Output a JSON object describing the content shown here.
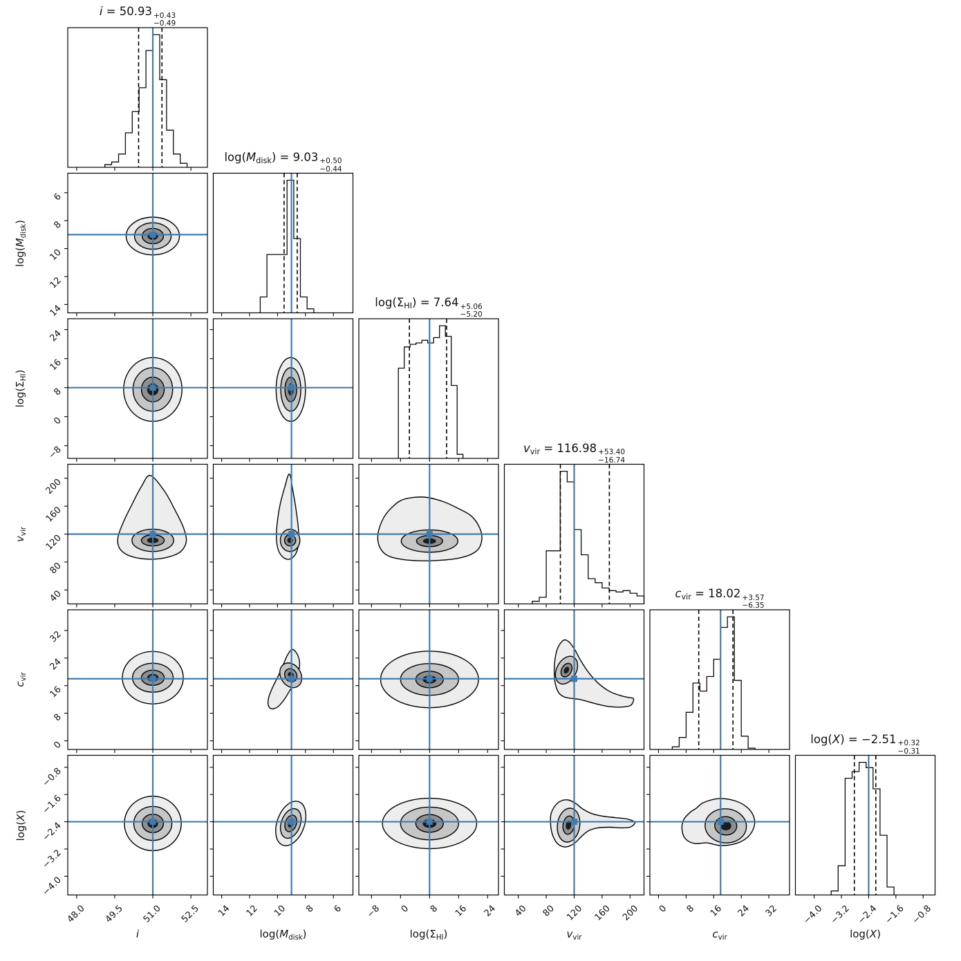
{
  "figure": {
    "background": "#ffffff",
    "accent_blue": "#3E7CB1",
    "contour_stroke": "#000000",
    "hist_stroke": "#0a0a0a",
    "quantile_dash_color": "#000000",
    "contour_fills": [
      "#ededed",
      "#c6c6c6",
      "#8f8f8f",
      "#1b1b1b"
    ]
  },
  "chart_data": {
    "type": "corner_plot",
    "description": "6-parameter MCMC posterior corner plot: diagonal 1D marginal histograms with median/quantile annotations, lower triangle 2D joint grayscale density contours, blue truth cross-hairs.",
    "parameters": [
      {
        "id": "i",
        "label_segments": [
          {
            "t": "i",
            "i": true
          }
        ],
        "title": {
          "median": "50.93",
          "plus": "+0.43",
          "minus": "−0.49"
        },
        "range": [
          47.65,
          53.15
        ],
        "ticks": [
          48.0,
          49.5,
          51.0,
          52.5
        ],
        "tick_labels": [
          "48.0",
          "49.5",
          "51.0",
          "52.5"
        ],
        "truth": 51.0,
        "quantiles": [
          50.44,
          51.36
        ],
        "hist": {
          "start": 49.11,
          "bin_width": 0.27,
          "heights": [
            0.02,
            0.04,
            0.1,
            0.26,
            0.42,
            0.6,
            0.88,
            1.0,
            0.66,
            0.28,
            0.1,
            0.03
          ]
        }
      },
      {
        "id": "logMdisk",
        "label_segments": [
          {
            "t": "log("
          },
          {
            "t": "M",
            "i": true
          },
          {
            "t": "disk",
            "sub": true
          },
          {
            "t": ")"
          }
        ],
        "title": {
          "median": "9.03",
          "plus": "+0.50",
          "minus": "−0.44"
        },
        "range": [
          14.6,
          4.6
        ],
        "ticks": [
          14,
          12,
          10,
          8,
          6
        ],
        "tick_labels": [
          "14",
          "12",
          "10",
          "8",
          "6"
        ],
        "truth": 9.0,
        "quantiles": [
          9.53,
          8.59
        ],
        "hist": {
          "start": 7.4,
          "bin_width": 0.48,
          "heights": [
            0.03,
            0.12,
            0.56,
            1.0,
            0.44,
            0.44,
            0.44,
            0.12
          ]
        }
      },
      {
        "id": "logSigmaHI",
        "label_segments": [
          {
            "t": "log("
          },
          {
            "t": "Σ"
          },
          {
            "t": "HI",
            "sub": true
          },
          {
            "t": ")"
          }
        ],
        "title": {
          "median": "7.64",
          "plus": "+5.06",
          "minus": "−5.20"
        },
        "range": [
          -11.5,
          27.0
        ],
        "ticks": [
          -8,
          0,
          8,
          16,
          24
        ],
        "tick_labels": [
          "−8",
          "0",
          "8",
          "16",
          "24"
        ],
        "truth": 8.0,
        "quantiles": [
          2.44,
          12.7
        ],
        "hist": {
          "start": -0.6,
          "bin_width": 1.62,
          "heights": [
            0.68,
            0.84,
            0.86,
            0.87,
            0.89,
            0.87,
            0.91,
            1.0,
            0.92,
            0.55,
            0.03
          ]
        }
      },
      {
        "id": "vvir",
        "label_segments": [
          {
            "t": "v",
            "i": true
          },
          {
            "t": "vir",
            "sub": true
          }
        ],
        "title": {
          "median": "116.98",
          "plus": "+53.40",
          "minus": "−16.74"
        },
        "range": [
          20,
          220
        ],
        "ticks": [
          40,
          80,
          120,
          160,
          200
        ],
        "tick_labels": [
          "40",
          "80",
          "120",
          "160",
          "200"
        ],
        "truth": 120.0,
        "quantiles": [
          100.24,
          170.38
        ],
        "hist": {
          "start": 60,
          "bin_width": 10,
          "heights": [
            0.02,
            0.05,
            0.4,
            0.4,
            1.0,
            0.92,
            0.56,
            0.37,
            0.19,
            0.16,
            0.12,
            0.1,
            0.09,
            0.1,
            0.08,
            0.06
          ]
        }
      },
      {
        "id": "cvir",
        "label_segments": [
          {
            "t": "c",
            "i": true
          },
          {
            "t": "vir",
            "sub": true
          }
        ],
        "title": {
          "median": "18.02",
          "plus": "+3.57",
          "minus": "−6.35"
        },
        "range": [
          -2.5,
          38
        ],
        "ticks": [
          0,
          8,
          16,
          24,
          32
        ],
        "tick_labels": [
          "0",
          "8",
          "16",
          "24",
          "32"
        ],
        "truth": 18.0,
        "quantiles": [
          11.67,
          21.59
        ],
        "hist": {
          "start": 4,
          "bin_width": 2,
          "heights": [
            0.02,
            0.09,
            0.28,
            0.5,
            0.44,
            0.55,
            0.68,
            0.92,
            1.0,
            0.52,
            0.1,
            0.01
          ]
        }
      },
      {
        "id": "logX",
        "label_segments": [
          {
            "t": "log("
          },
          {
            "t": "X",
            "i": true
          },
          {
            "t": ")"
          }
        ],
        "title": {
          "median": "−2.51",
          "plus": "+0.32",
          "minus": "−0.31"
        },
        "range": [
          -4.55,
          -0.45
        ],
        "ticks": [
          -4.0,
          -3.2,
          -2.4,
          -1.6,
          -0.8
        ],
        "tick_labels": [
          "−4.0",
          "−3.2",
          "−2.4",
          "−1.6",
          "−0.8"
        ],
        "truth": -2.4,
        "quantiles": [
          -2.82,
          -2.19
        ],
        "hist": {
          "start": -3.5,
          "bin_width": 0.205,
          "heights": [
            0.03,
            0.22,
            0.88,
            0.93,
            1.0,
            0.96,
            0.8,
            0.45,
            0.06
          ]
        }
      }
    ],
    "panels_2d": [
      {
        "x": 0,
        "y": 1,
        "core": [
          51.0,
          9.1
        ],
        "rot": 0,
        "levels": [
          [
            0.42,
            0.55
          ],
          [
            0.72,
            0.95
          ],
          [
            1.05,
            1.35
          ]
        ]
      },
      {
        "x": 0,
        "y": 2,
        "core": [
          51.0,
          7.5
        ],
        "rot": 0,
        "levels": [
          [
            0.45,
            3.4
          ],
          [
            0.78,
            6.0
          ],
          [
            1.15,
            8.8
          ]
        ]
      },
      {
        "x": 1,
        "y": 2,
        "core": [
          9.05,
          7.5
        ],
        "rot": 0,
        "levels": [
          [
            0.42,
            3.4
          ],
          [
            0.72,
            6.0
          ],
          [
            1.05,
            8.8
          ]
        ]
      },
      {
        "x": 0,
        "y": 3,
        "core": [
          51.0,
          111
        ],
        "rot": 0,
        "levels": [
          [
            0.45,
            8
          ],
          [
            0.82,
            16
          ]
        ],
        "outer": [
          [
            50.9,
            204
          ],
          [
            51.45,
            182
          ],
          [
            51.85,
            156
          ],
          [
            52.2,
            130
          ],
          [
            52.32,
            110
          ],
          [
            52.1,
            95
          ],
          [
            51.6,
            87
          ],
          [
            50.9,
            84
          ],
          [
            50.15,
            88
          ],
          [
            49.72,
            98
          ],
          [
            49.62,
            114
          ],
          [
            49.85,
            138
          ],
          [
            50.2,
            164
          ],
          [
            50.55,
            188
          ]
        ]
      },
      {
        "x": 1,
        "y": 3,
        "core": [
          9.1,
          111
        ],
        "rot": 0,
        "levels": [
          [
            0.4,
            8
          ],
          [
            0.7,
            16
          ]
        ],
        "outer": [
          [
            9.15,
            206
          ],
          [
            8.88,
            180
          ],
          [
            8.66,
            153
          ],
          [
            8.5,
            126
          ],
          [
            8.5,
            105
          ],
          [
            8.75,
            90
          ],
          [
            9.18,
            84
          ],
          [
            9.62,
            87
          ],
          [
            9.94,
            97
          ],
          [
            10.08,
            114
          ],
          [
            10.02,
            136
          ],
          [
            9.82,
            162
          ],
          [
            9.5,
            186
          ]
        ]
      },
      {
        "x": 2,
        "y": 3,
        "core": [
          8,
          110
        ],
        "rot": 0,
        "levels": [
          [
            3.6,
            8
          ],
          [
            7.8,
            16
          ]
        ],
        "outer": [
          [
            1,
            170
          ],
          [
            6.5,
            173
          ],
          [
            11.5,
            167
          ],
          [
            15.8,
            157
          ],
          [
            19.5,
            146
          ],
          [
            21.8,
            129
          ],
          [
            22.4,
            112
          ],
          [
            21,
            96
          ],
          [
            16.5,
            86
          ],
          [
            9,
            82
          ],
          [
            1.5,
            83
          ],
          [
            -3.5,
            89
          ],
          [
            -5.8,
            102
          ],
          [
            -6.2,
            121
          ],
          [
            -4.6,
            144
          ],
          [
            -2,
            160
          ]
        ]
      },
      {
        "x": 0,
        "y": 4,
        "core": [
          51.0,
          18.3
        ],
        "rot": 0,
        "levels": [
          [
            0.45,
            2.2
          ],
          [
            0.8,
            4.2
          ],
          [
            1.2,
            7.6
          ]
        ]
      },
      {
        "x": 1,
        "y": 4,
        "core": [
          9.05,
          19.0
        ],
        "rot": -32,
        "levels": [
          [
            0.42,
            2.0
          ],
          [
            0.72,
            3.8
          ]
        ],
        "outer": [
          [
            8.95,
            26.5
          ],
          [
            8.6,
            25.2
          ],
          [
            8.42,
            22.8
          ],
          [
            8.48,
            20.2
          ],
          [
            8.75,
            17.2
          ],
          [
            9.15,
            14.4
          ],
          [
            9.55,
            11.8
          ],
          [
            10.0,
            9.8
          ],
          [
            10.45,
            9.3
          ],
          [
            10.68,
            10.6
          ],
          [
            10.6,
            13.0
          ],
          [
            10.32,
            15.8
          ],
          [
            9.95,
            18.8
          ],
          [
            9.6,
            22.0
          ],
          [
            9.3,
            24.8
          ]
        ]
      },
      {
        "x": 2,
        "y": 4,
        "core": [
          8,
          17.8
        ],
        "rot": 0,
        "levels": [
          [
            3.8,
            2.4
          ],
          [
            8,
            4.6
          ],
          [
            13.5,
            8.2
          ]
        ]
      },
      {
        "x": 3,
        "y": 4,
        "core": [
          109,
          20.5
        ],
        "rot": 28,
        "levels": [
          [
            7,
            2.1
          ],
          [
            14,
            4.3
          ]
        ],
        "outer": [
          [
            105,
            29.2
          ],
          [
            113,
            28.6
          ],
          [
            121,
            26.4
          ],
          [
            129,
            23.4
          ],
          [
            140,
            20.0
          ],
          [
            154,
            16.8
          ],
          [
            170,
            14.4
          ],
          [
            185,
            13.2
          ],
          [
            197,
            12.6
          ],
          [
            205,
            12.2
          ],
          [
            201,
            10.3
          ],
          [
            188,
            9.8
          ],
          [
            172,
            9.9
          ],
          [
            156,
            10.5
          ],
          [
            141,
            11.3
          ],
          [
            128,
            12.0
          ],
          [
            116,
            12.3
          ],
          [
            106,
            12.7
          ],
          [
            98,
            13.9
          ],
          [
            93,
            16.5
          ],
          [
            91.5,
            20.0
          ],
          [
            92.5,
            23.6
          ],
          [
            96.5,
            27.0
          ]
        ]
      },
      {
        "x": 0,
        "y": 5,
        "core": [
          51.0,
          -2.45
        ],
        "rot": 0,
        "levels": [
          [
            0.42,
            0.27
          ],
          [
            0.75,
            0.5
          ],
          [
            1.12,
            0.8
          ]
        ]
      },
      {
        "x": 1,
        "y": 5,
        "core": [
          9.05,
          -2.45
        ],
        "rot": 20,
        "levels": [
          [
            0.4,
            0.25
          ],
          [
            0.68,
            0.45
          ],
          [
            0.98,
            0.68
          ]
        ]
      },
      {
        "x": 2,
        "y": 5,
        "core": [
          8,
          -2.45
        ],
        "rot": 0,
        "levels": [
          [
            3.8,
            0.26
          ],
          [
            8,
            0.48
          ],
          [
            13,
            0.74
          ]
        ]
      },
      {
        "x": 3,
        "y": 5,
        "core": [
          112,
          -2.5
        ],
        "rot": 8,
        "levels": [
          [
            8,
            0.27
          ],
          [
            16,
            0.5
          ]
        ],
        "outer": [
          [
            100,
            -1.8
          ],
          [
            111,
            -1.76
          ],
          [
            122,
            -1.86
          ],
          [
            132,
            -2.02
          ],
          [
            145,
            -2.16
          ],
          [
            162,
            -2.24
          ],
          [
            180,
            -2.28
          ],
          [
            196,
            -2.32
          ],
          [
            207,
            -2.42
          ],
          [
            200,
            -2.56
          ],
          [
            186,
            -2.58
          ],
          [
            170,
            -2.56
          ],
          [
            154,
            -2.58
          ],
          [
            141,
            -2.66
          ],
          [
            130,
            -2.84
          ],
          [
            120,
            -3.04
          ],
          [
            108,
            -3.14
          ],
          [
            97,
            -3.06
          ],
          [
            90,
            -2.84
          ],
          [
            86.5,
            -2.55
          ],
          [
            86.5,
            -2.2
          ],
          [
            92,
            -1.95
          ]
        ]
      },
      {
        "x": 4,
        "y": 5,
        "core": [
          19.5,
          -2.52
        ],
        "rot": 5,
        "levels": [
          [
            3.2,
            0.27
          ],
          [
            6,
            0.5
          ]
        ],
        "outer": [
          [
            13,
            -1.84
          ],
          [
            17.5,
            -1.72
          ],
          [
            22,
            -1.78
          ],
          [
            25.5,
            -1.96
          ],
          [
            27.5,
            -2.22
          ],
          [
            27.8,
            -2.52
          ],
          [
            26.0,
            -2.84
          ],
          [
            22.5,
            -3.04
          ],
          [
            18,
            -3.1
          ],
          [
            14,
            -3.02
          ],
          [
            10.5,
            -3.04
          ],
          [
            7.8,
            -2.9
          ],
          [
            6.8,
            -2.62
          ],
          [
            7.3,
            -2.34
          ],
          [
            9.2,
            -2.12
          ],
          [
            11,
            -2.0
          ]
        ]
      }
    ],
    "layout_hints": {
      "grid": "6x6 lower triangle",
      "tick_label_rotation_deg": 45,
      "legend": "none"
    }
  }
}
